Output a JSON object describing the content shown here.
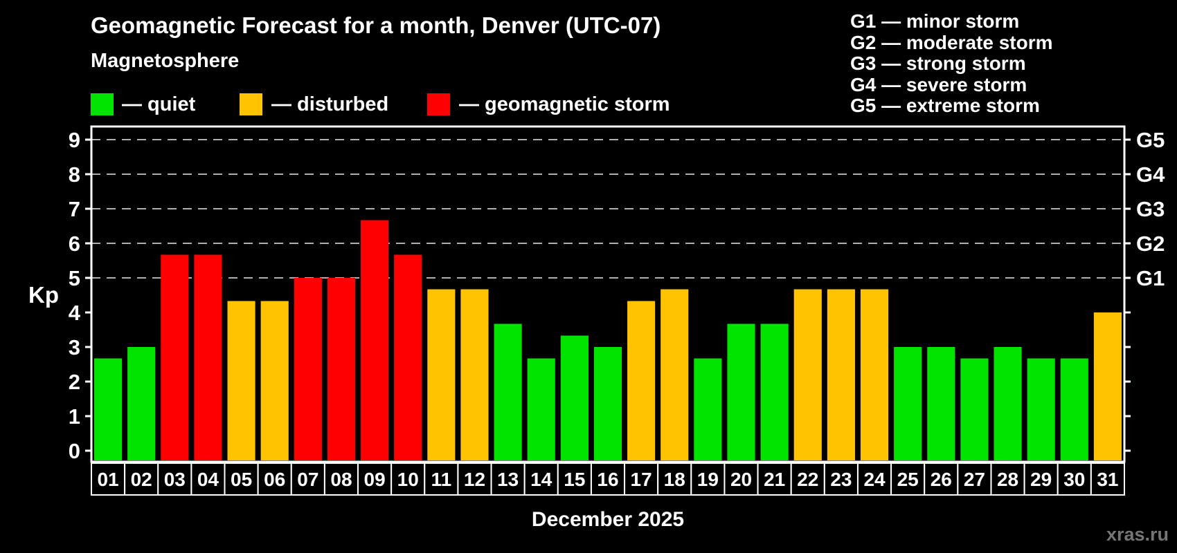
{
  "header": {
    "title": "Geomagnetic Forecast for a month, Denver (UTC-07)",
    "subtitle": "Magnetosphere"
  },
  "legend": {
    "items": [
      {
        "key": "quiet",
        "label": "— quiet",
        "color": "#00e400"
      },
      {
        "key": "disturbed",
        "label": "— disturbed",
        "color": "#ffc300"
      },
      {
        "key": "storm",
        "label": "— geomagnetic storm",
        "color": "#ff0000"
      }
    ]
  },
  "g_legend": {
    "lines": [
      "G1 — minor storm",
      "G2 — moderate storm",
      "G3 — strong storm",
      "G4 — severe storm",
      "G5 — extreme storm"
    ]
  },
  "chart_data": {
    "type": "bar",
    "title": "Geomagnetic Forecast for a month, Denver (UTC-07)",
    "subtitle": "Magnetosphere",
    "xlabel": "December 2025",
    "ylabel": "Kp",
    "ylim": [
      0,
      9
    ],
    "y_ticks": [
      0,
      1,
      2,
      3,
      4,
      5,
      6,
      7,
      8,
      9
    ],
    "gridlines_at": [
      5,
      6,
      7,
      8,
      9
    ],
    "grid": "horizontal dashed at storm levels only",
    "legend_position": "top-left",
    "right_axis_labels": {
      "5": "G1",
      "6": "G2",
      "7": "G3",
      "8": "G4",
      "9": "G5"
    },
    "categories": [
      "01",
      "02",
      "03",
      "04",
      "05",
      "06",
      "07",
      "08",
      "09",
      "10",
      "11",
      "12",
      "13",
      "14",
      "15",
      "16",
      "17",
      "18",
      "19",
      "20",
      "21",
      "22",
      "23",
      "24",
      "25",
      "26",
      "27",
      "28",
      "29",
      "30",
      "31"
    ],
    "values": [
      2.67,
      3.0,
      5.67,
      5.67,
      4.33,
      4.33,
      5.0,
      5.0,
      6.67,
      5.67,
      4.67,
      4.67,
      3.67,
      2.67,
      3.33,
      3.0,
      4.33,
      4.67,
      2.67,
      3.67,
      3.67,
      4.67,
      4.67,
      4.67,
      3.0,
      3.0,
      2.67,
      3.0,
      2.67,
      2.67,
      4.0
    ],
    "statuses": [
      "quiet",
      "quiet",
      "storm",
      "storm",
      "disturbed",
      "disturbed",
      "storm",
      "storm",
      "storm",
      "storm",
      "disturbed",
      "disturbed",
      "quiet",
      "quiet",
      "quiet",
      "quiet",
      "disturbed",
      "disturbed",
      "quiet",
      "quiet",
      "quiet",
      "disturbed",
      "disturbed",
      "disturbed",
      "quiet",
      "quiet",
      "quiet",
      "quiet",
      "quiet",
      "quiet",
      "disturbed"
    ],
    "status_colors": {
      "quiet": "#00e400",
      "disturbed": "#ffc300",
      "storm": "#ff0000"
    }
  },
  "footer": {
    "month_label": "December 2025",
    "watermark": "xras.ru"
  }
}
